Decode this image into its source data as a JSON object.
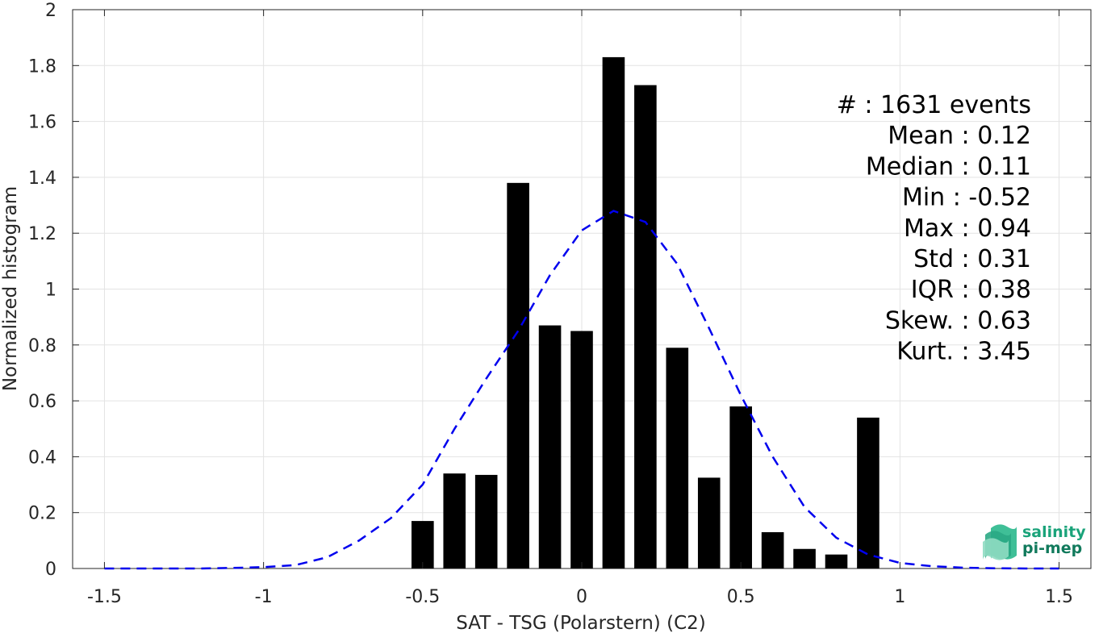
{
  "chart_data": {
    "type": "bar",
    "xlabel": "SAT - TSG (Polarstern) (C2)",
    "ylabel": "Normalized histogram",
    "xlim": [
      -1.6,
      1.6
    ],
    "ylim": [
      0,
      2
    ],
    "xticks": [
      -1.5,
      -1,
      -0.5,
      0,
      0.5,
      1,
      1.5
    ],
    "xtick_labels": [
      "-1.5",
      "-1",
      "-0.5",
      "0",
      "0.5",
      "1",
      "1.5"
    ],
    "yticks": [
      0,
      0.2,
      0.4,
      0.6,
      0.8,
      1,
      1.2,
      1.4,
      1.6,
      1.8,
      2
    ],
    "ytick_labels": [
      "0",
      "0.2",
      "0.4",
      "0.6",
      "0.8",
      "1",
      "1.2",
      "1.4",
      "1.6",
      "1.8",
      "2"
    ],
    "grid": true,
    "bar_width": 0.07,
    "bars": [
      {
        "x": -0.5,
        "y": 0.17
      },
      {
        "x": -0.4,
        "y": 0.34
      },
      {
        "x": -0.3,
        "y": 0.335
      },
      {
        "x": -0.2,
        "y": 1.38
      },
      {
        "x": -0.1,
        "y": 0.87
      },
      {
        "x": 0.0,
        "y": 0.85
      },
      {
        "x": 0.1,
        "y": 1.83
      },
      {
        "x": 0.2,
        "y": 1.73
      },
      {
        "x": 0.3,
        "y": 0.79
      },
      {
        "x": 0.4,
        "y": 0.325
      },
      {
        "x": 0.5,
        "y": 0.58
      },
      {
        "x": 0.6,
        "y": 0.13
      },
      {
        "x": 0.7,
        "y": 0.07
      },
      {
        "x": 0.8,
        "y": 0.05
      },
      {
        "x": 0.9,
        "y": 0.54
      }
    ],
    "fit_curve": {
      "style": "dashed",
      "color": "#0000ee",
      "x": [
        -1.5,
        -1.4,
        -1.3,
        -1.2,
        -1.1,
        -1.0,
        -0.9,
        -0.8,
        -0.7,
        -0.6,
        -0.5,
        -0.4,
        -0.3,
        -0.2,
        -0.1,
        0.0,
        0.1,
        0.2,
        0.3,
        0.4,
        0.5,
        0.6,
        0.7,
        0.8,
        0.9,
        1.0,
        1.1,
        1.2,
        1.3,
        1.4,
        1.5
      ],
      "y": [
        0.0,
        0.0,
        0.0,
        0.0,
        0.002,
        0.005,
        0.012,
        0.04,
        0.1,
        0.18,
        0.3,
        0.5,
        0.68,
        0.85,
        1.05,
        1.21,
        1.28,
        1.24,
        1.09,
        0.86,
        0.62,
        0.4,
        0.22,
        0.11,
        0.05,
        0.02,
        0.008,
        0.003,
        0.001,
        0.0,
        0.0
      ]
    },
    "stats": [
      "#  : 1631 events",
      "Mean : 0.12",
      "Median : 0.11",
      "Min : -0.52",
      "Max : 0.94",
      "Std : 0.31",
      "IQR : 0.38",
      "Skew. : 0.63",
      "Kurt. : 3.45"
    ]
  },
  "logo": {
    "line1": "salinity",
    "line2": "pi-mep",
    "color1": "#1aa37a",
    "color2": "#117a5c"
  }
}
